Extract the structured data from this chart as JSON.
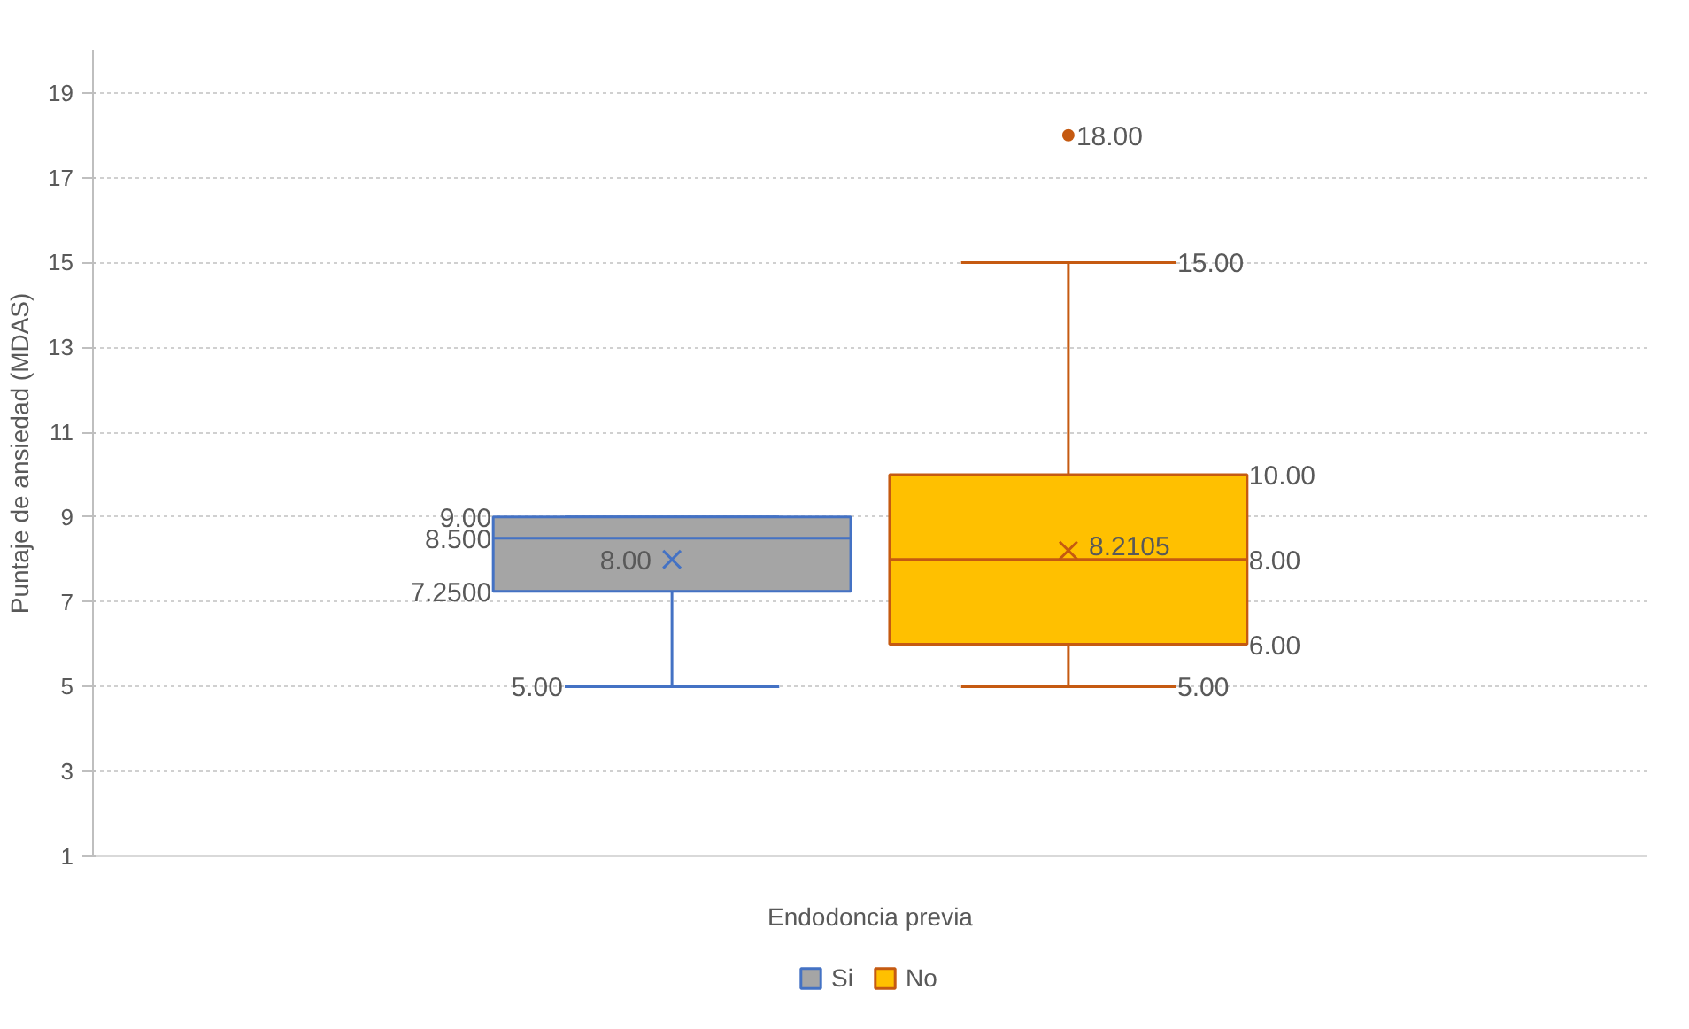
{
  "chart_data": {
    "type": "box",
    "xlabel": "Endodoncia previa",
    "ylabel": "Puntaje de ansiedad (MDAS)",
    "categories": [
      null
    ],
    "series": [
      {
        "name": "Si",
        "color": "#a5a5a5",
        "boxes": [
          {
            "low": 5,
            "q1": 7.25,
            "median": 8.5,
            "q3": 9,
            "high": 9,
            "mean": 8.0
          }
        ]
      },
      {
        "name": "No",
        "color": "#ffc000",
        "boxes": [
          {
            "low": 5,
            "q1": 6,
            "median": 8,
            "q3": 10,
            "high": 15,
            "mean": 8.2105,
            "outliers": [
              18
            ]
          }
        ]
      }
    ],
    "annotations": [
      "5.00",
      "7.2500",
      "8.500",
      "9.00",
      "8.00",
      "5.00",
      "6.00",
      "8.00",
      "10.00",
      "15.00",
      "8.2105",
      "18.00"
    ],
    "ylim": [
      1,
      20
    ],
    "yticks": [
      1,
      3,
      5,
      7,
      9,
      11,
      13,
      15,
      17,
      19
    ],
    "grid": "y",
    "legend": "bottom",
    "marker": "cross"
  }
}
